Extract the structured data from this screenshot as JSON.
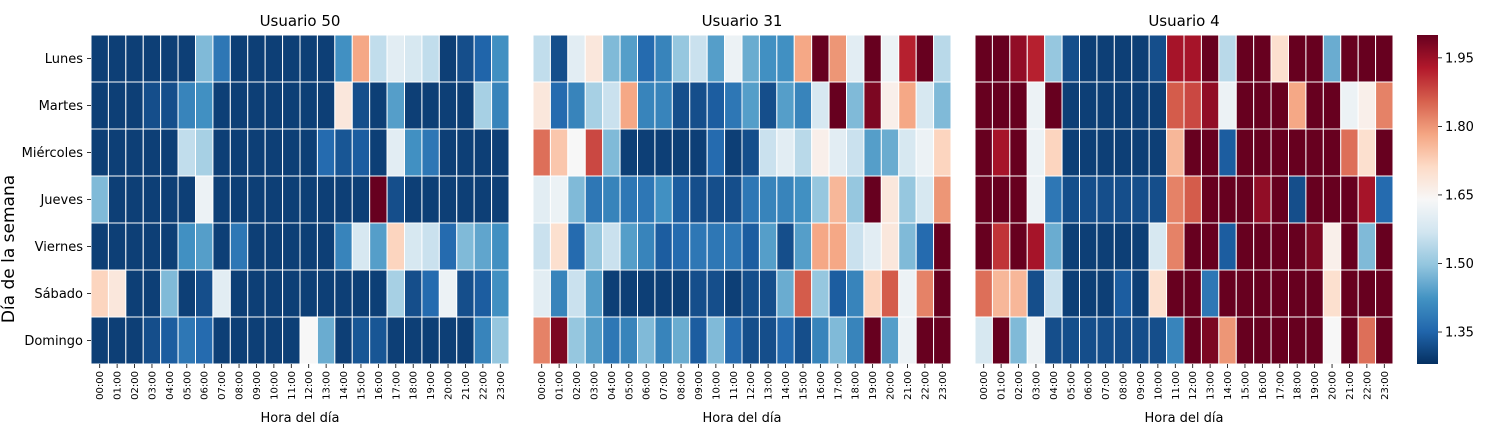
{
  "chart_data": {
    "type": "heatmap",
    "colormap": "RdBu_r",
    "vmin": 1.28,
    "vmax": 2.0,
    "ylabel": "Día de la semana",
    "colorbar_ticks": [
      1.35,
      1.5,
      1.65,
      1.8,
      1.95
    ],
    "colorbar_tick_labels": [
      "1.35",
      "1.50",
      "1.65",
      "1.80",
      "1.95"
    ],
    "x_categories": [
      "00:00",
      "01:00",
      "02:00",
      "03:00",
      "04:00",
      "05:00",
      "06:00",
      "07:00",
      "08:00",
      "09:00",
      "10:00",
      "11:00",
      "12:00",
      "13:00",
      "14:00",
      "15:00",
      "16:00",
      "17:00",
      "18:00",
      "19:00",
      "20:00",
      "21:00",
      "22:00",
      "23:00"
    ],
    "y_categories": [
      "Lunes",
      "Martes",
      "Miércoles",
      "Jueves",
      "Viernes",
      "Sábado",
      "Domingo"
    ],
    "panels": [
      {
        "title": "Usuario 50",
        "xlabel": "Hora del día",
        "values": [
          [
            1.3,
            1.3,
            1.3,
            1.3,
            1.3,
            1.3,
            1.48,
            1.38,
            1.3,
            1.3,
            1.3,
            1.3,
            1.3,
            1.3,
            1.42,
            1.78,
            1.55,
            1.6,
            1.58,
            1.55,
            1.3,
            1.32,
            1.35,
            1.42
          ],
          [
            1.3,
            1.3,
            1.3,
            1.32,
            1.32,
            1.4,
            1.42,
            1.3,
            1.3,
            1.3,
            1.3,
            1.3,
            1.3,
            1.3,
            1.68,
            1.32,
            1.3,
            1.44,
            1.3,
            1.3,
            1.3,
            1.3,
            1.52,
            1.4
          ],
          [
            1.3,
            1.3,
            1.3,
            1.3,
            1.3,
            1.55,
            1.52,
            1.3,
            1.3,
            1.3,
            1.3,
            1.3,
            1.3,
            1.36,
            1.33,
            1.34,
            1.3,
            1.6,
            1.42,
            1.38,
            1.3,
            1.3,
            1.3,
            1.3
          ],
          [
            1.48,
            1.3,
            1.3,
            1.3,
            1.3,
            1.3,
            1.62,
            1.3,
            1.3,
            1.3,
            1.3,
            1.3,
            1.3,
            1.3,
            1.3,
            1.3,
            2.0,
            1.32,
            1.3,
            1.3,
            1.3,
            1.3,
            1.3,
            1.3
          ],
          [
            1.3,
            1.3,
            1.3,
            1.3,
            1.3,
            1.42,
            1.44,
            1.3,
            1.38,
            1.3,
            1.3,
            1.3,
            1.3,
            1.3,
            1.4,
            1.58,
            1.44,
            1.72,
            1.58,
            1.56,
            1.36,
            1.48,
            1.45,
            1.42
          ],
          [
            1.72,
            1.68,
            1.3,
            1.3,
            1.48,
            1.3,
            1.32,
            1.6,
            1.3,
            1.3,
            1.3,
            1.3,
            1.3,
            1.3,
            1.3,
            1.3,
            1.3,
            1.52,
            1.32,
            1.36,
            1.62,
            1.32,
            1.34,
            1.42
          ],
          [
            1.3,
            1.3,
            1.3,
            1.32,
            1.34,
            1.38,
            1.36,
            1.3,
            1.3,
            1.3,
            1.3,
            1.3,
            1.64,
            1.46,
            1.3,
            1.33,
            1.33,
            1.3,
            1.3,
            1.3,
            1.3,
            1.3,
            1.4,
            1.5
          ]
        ]
      },
      {
        "title": "Usuario 31",
        "xlabel": "Hora del día",
        "values": [
          [
            1.55,
            1.32,
            1.6,
            1.68,
            1.48,
            1.44,
            1.36,
            1.4,
            1.5,
            1.56,
            1.44,
            1.62,
            1.46,
            1.42,
            1.42,
            1.78,
            2.0,
            1.8,
            1.6,
            2.0,
            1.62,
            1.92,
            2.0,
            1.54
          ],
          [
            1.68,
            1.36,
            1.4,
            1.52,
            1.56,
            1.78,
            1.4,
            1.4,
            1.32,
            1.32,
            1.34,
            1.38,
            1.44,
            1.32,
            1.44,
            1.4,
            1.58,
            2.0,
            1.48,
            1.98,
            1.66,
            1.78,
            1.58,
            1.48
          ],
          [
            1.84,
            1.74,
            1.64,
            1.88,
            1.48,
            1.3,
            1.3,
            1.3,
            1.3,
            1.3,
            1.36,
            1.3,
            1.32,
            1.56,
            1.6,
            1.54,
            1.66,
            1.6,
            1.56,
            1.44,
            1.46,
            1.58,
            1.62,
            1.72
          ],
          [
            1.6,
            1.62,
            1.48,
            1.38,
            1.4,
            1.38,
            1.38,
            1.42,
            1.34,
            1.32,
            1.32,
            1.32,
            1.38,
            1.4,
            1.4,
            1.42,
            1.5,
            1.76,
            1.5,
            2.0,
            1.68,
            1.5,
            1.58,
            1.8
          ],
          [
            1.56,
            1.7,
            1.36,
            1.5,
            1.56,
            1.44,
            1.4,
            1.34,
            1.36,
            1.38,
            1.38,
            1.38,
            1.34,
            1.44,
            1.32,
            1.44,
            1.78,
            1.78,
            1.56,
            1.6,
            1.68,
            1.48,
            1.36,
            2.0
          ],
          [
            1.6,
            1.4,
            1.56,
            1.44,
            1.3,
            1.3,
            1.3,
            1.3,
            1.3,
            1.32,
            1.32,
            1.3,
            1.32,
            1.32,
            1.46,
            1.86,
            1.5,
            1.34,
            1.4,
            1.72,
            1.86,
            1.62,
            1.82,
            2.0
          ],
          [
            1.82,
            1.98,
            1.5,
            1.44,
            1.38,
            1.4,
            1.48,
            1.4,
            1.46,
            1.34,
            1.48,
            1.36,
            1.32,
            1.32,
            1.36,
            1.32,
            1.4,
            1.48,
            1.4,
            2.0,
            1.44,
            1.62,
            2.0,
            2.0
          ]
        ]
      },
      {
        "title": "Usuario 4",
        "xlabel": "Hora del día",
        "values": [
          [
            2.0,
            2.0,
            1.96,
            1.92,
            1.5,
            1.32,
            1.3,
            1.3,
            1.3,
            1.3,
            1.32,
            1.94,
            1.94,
            2.0,
            1.54,
            2.0,
            2.0,
            1.7,
            2.0,
            2.0,
            1.46,
            2.0,
            2.0,
            2.0
          ],
          [
            2.0,
            2.0,
            2.0,
            1.62,
            2.0,
            1.3,
            1.3,
            1.3,
            1.3,
            1.3,
            1.3,
            1.86,
            1.88,
            1.96,
            1.62,
            2.0,
            2.0,
            2.0,
            1.78,
            2.0,
            2.0,
            1.62,
            1.66,
            1.82
          ],
          [
            2.0,
            1.94,
            2.0,
            1.62,
            1.72,
            1.3,
            1.3,
            1.3,
            1.3,
            1.3,
            1.3,
            1.76,
            2.0,
            2.0,
            1.34,
            2.0,
            2.0,
            2.0,
            2.0,
            2.0,
            2.0,
            1.84,
            1.7,
            2.0
          ],
          [
            2.0,
            2.0,
            2.0,
            1.62,
            1.38,
            1.32,
            1.32,
            1.32,
            1.32,
            1.32,
            1.32,
            1.82,
            1.86,
            2.0,
            2.0,
            2.0,
            1.96,
            2.0,
            1.32,
            2.0,
            2.0,
            2.0,
            1.94,
            1.36
          ],
          [
            2.0,
            1.9,
            2.0,
            1.94,
            1.46,
            1.3,
            1.3,
            1.3,
            1.3,
            1.3,
            1.58,
            1.82,
            2.0,
            2.0,
            1.34,
            2.0,
            2.0,
            2.0,
            2.0,
            1.98,
            1.66,
            2.0,
            1.48,
            2.0
          ],
          [
            1.84,
            1.76,
            1.76,
            1.32,
            1.56,
            1.3,
            1.3,
            1.3,
            1.34,
            1.3,
            1.7,
            2.0,
            2.0,
            1.38,
            2.0,
            2.0,
            2.0,
            2.0,
            2.0,
            2.0,
            1.7,
            2.0,
            2.0,
            2.0
          ],
          [
            1.58,
            2.0,
            1.48,
            1.62,
            1.32,
            1.32,
            1.32,
            1.32,
            1.32,
            1.32,
            1.32,
            1.4,
            2.0,
            1.98,
            1.8,
            2.0,
            2.0,
            2.0,
            2.0,
            2.0,
            1.64,
            2.0,
            1.84,
            2.0
          ]
        ]
      }
    ]
  }
}
